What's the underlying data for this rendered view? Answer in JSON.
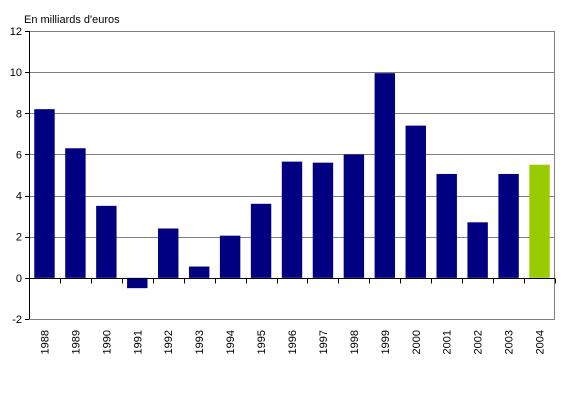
{
  "chart_data": {
    "type": "bar",
    "ylabel": "En milliards d'euros",
    "ylim": [
      -2,
      12
    ],
    "yticks": [
      -2,
      0,
      2,
      4,
      6,
      8,
      10,
      12
    ],
    "grid": "horizontal",
    "categories": [
      "1988",
      "1989",
      "1990",
      "1991",
      "1992",
      "1993",
      "1994",
      "1995",
      "1996",
      "1997",
      "1998",
      "1999",
      "2000",
      "2001",
      "2002",
      "2003",
      "2004"
    ],
    "values": [
      8.2,
      6.3,
      3.5,
      -0.5,
      2.4,
      0.55,
      2.05,
      3.6,
      5.65,
      5.6,
      6.0,
      9.95,
      7.4,
      5.05,
      2.7,
      5.05,
      5.5
    ],
    "colors": {
      "default_bar": "#000080",
      "highlight_bar": "#99cc00",
      "highlight_category": "2004",
      "gridline": "#808080",
      "axis": "#000000"
    }
  }
}
